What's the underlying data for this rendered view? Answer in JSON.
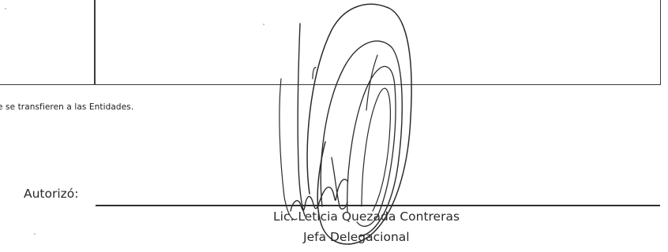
{
  "document": {
    "footnote": "e se transfieren a las Entidades.",
    "authorization": {
      "label": "Autorizó:",
      "signer_name": "Lic. Leticia Quezada Contreras",
      "signer_title": "Jefa Delegacional"
    },
    "signature": {
      "ink_color": "#2b2b2b"
    }
  }
}
